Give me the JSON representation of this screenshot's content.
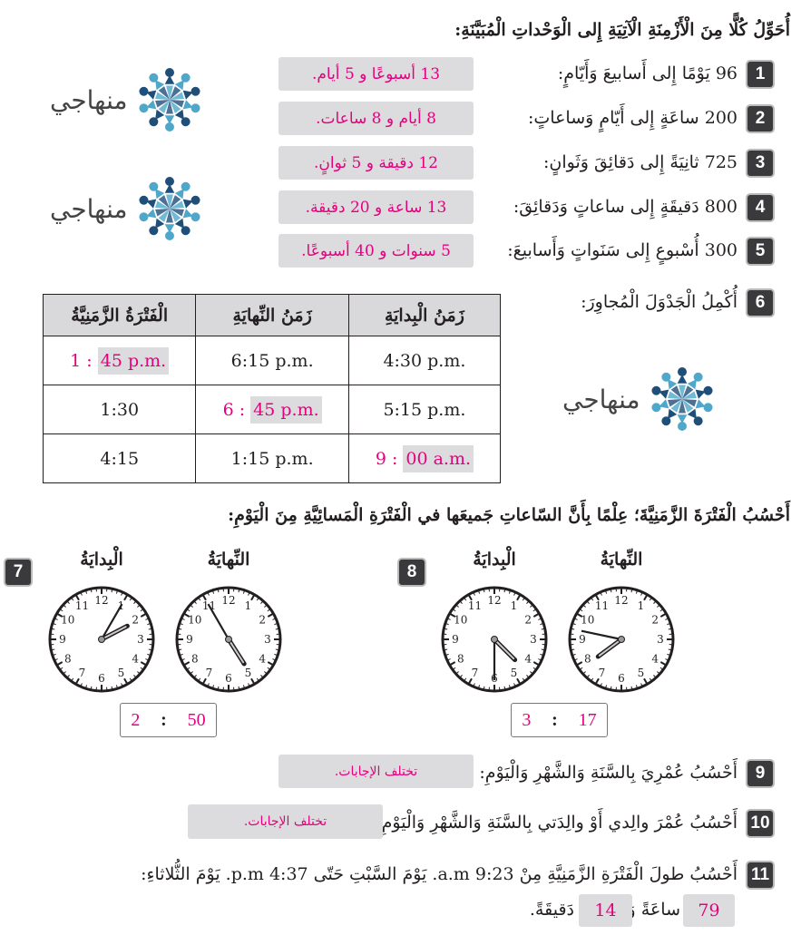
{
  "section1": {
    "title": "أُحَوِّلُ كُلًّا مِنَ الْأَزْمِنَةِ الْآتِيَةِ إِلى الْوَحْداتِ الْمُبَيَّنَةِ:",
    "items": [
      {
        "num": "1",
        "question": "96 يَوْمًا إِلى أَسابيعَ وَأَيّامٍ:",
        "answer": "13 أسبوعًا و 5 أيام."
      },
      {
        "num": "2",
        "question": "200 ساعَةٍ إِلى أَيّامٍ وَساعاتٍ:",
        "answer": "8 أيام و 8 ساعات."
      },
      {
        "num": "3",
        "question": "725 ثانِيَةً إِلى دَقائِقَ وَثَوانٍ:",
        "answer": "12 دقيقة و 5 ثوانٍ."
      },
      {
        "num": "4",
        "question": "800 دَقيقَةٍ إِلى ساعاتٍ وَدَقائِقَ:",
        "answer": "13 ساعة و 20 دقيقة."
      },
      {
        "num": "5",
        "question": "300 أُسْبوعٍ إِلى سَنَواتٍ وَأَسابيعَ:",
        "answer": "5 سنوات و 40 أسبوعًا."
      }
    ]
  },
  "logo_text": "منهاجي",
  "q6": {
    "num": "6",
    "question": "أُكْمِلُ الْجَدْوَلَ الْمُجاوِرَ:",
    "headers": [
      "زَمَنُ الْبِدايَةِ",
      "زَمَنُ النِّهايَةِ",
      "الْفَتْرَةُ الزَّمَنِيَّةُ"
    ],
    "rows": [
      {
        "start": "4:30 p.m.",
        "end": "6:15 p.m.",
        "duration_prefix": "1 : ",
        "duration": "45 p.m.",
        "answer_col": "duration"
      },
      {
        "start": "5:15 p.m.",
        "end_prefix": "6 : ",
        "end": "45 p.m.",
        "duration": "1:30",
        "answer_col": "end"
      },
      {
        "start_prefix": "9 : ",
        "start": "00 a.m.",
        "end": "1:15 p.m.",
        "duration": "4:15",
        "answer_col": "start"
      }
    ]
  },
  "section2": {
    "title": "أَحْسُبُ الْفَتْرَةَ الزَّمَنِيَّةَ؛ عِلْمًا بِأَنَّ السّاعاتِ جَميعَها في الْفَتْرَةِ الْمَسائِيَّةِ مِنَ الْيَوْمِ:",
    "start_label": "الْبِدايَةُ",
    "end_label": "النِّهايَةُ",
    "problems": [
      {
        "num": "7",
        "start_clock": {
          "hour": 2,
          "minute": 5
        },
        "end_clock": {
          "hour": 4,
          "minute": 55
        },
        "hours": "2",
        "minutes": "50"
      },
      {
        "num": "8",
        "start_clock": {
          "hour": 4,
          "minute": 30
        },
        "end_clock": {
          "hour": 7,
          "minute": 47
        },
        "hours": "3",
        "minutes": "17"
      }
    ],
    "separator": ":"
  },
  "q9": {
    "num": "9",
    "question": "أَحْسُبُ عُمْرِيَ بِالسَّنَةِ وَالشَّهْرِ وَالْيَوْمِ:",
    "answer": "تختلف الإجابات."
  },
  "q10": {
    "num": "10",
    "question": "أَحْسُبُ عُمْرَ والِدي أَوْ والِدَتي بِالسَّنَةِ وَالشَّهْرِ وَالْيَوْمِ:",
    "answer": "تختلف الإجابات."
  },
  "q11": {
    "num": "11",
    "question": "أَحْسُبُ طولَ الْفَتْرَةِ الزَّمَنِيَّةِ مِنْ 9:23 a.m. يَوْمَ السَّبْتِ حَتّى 4:37 p.m. يَوْمَ الثُّلاثاءِ:",
    "hours": "79",
    "hours_label": "ساعَةً وَ",
    "minutes": "14",
    "minutes_label": "دَقيقَةً."
  },
  "colors": {
    "answer": "#e6007e",
    "answer_bg": "#dcdcde",
    "badge": "#3a3a3c",
    "logo_dark": "#1f4e79",
    "logo_light": "#4fa8c9"
  }
}
